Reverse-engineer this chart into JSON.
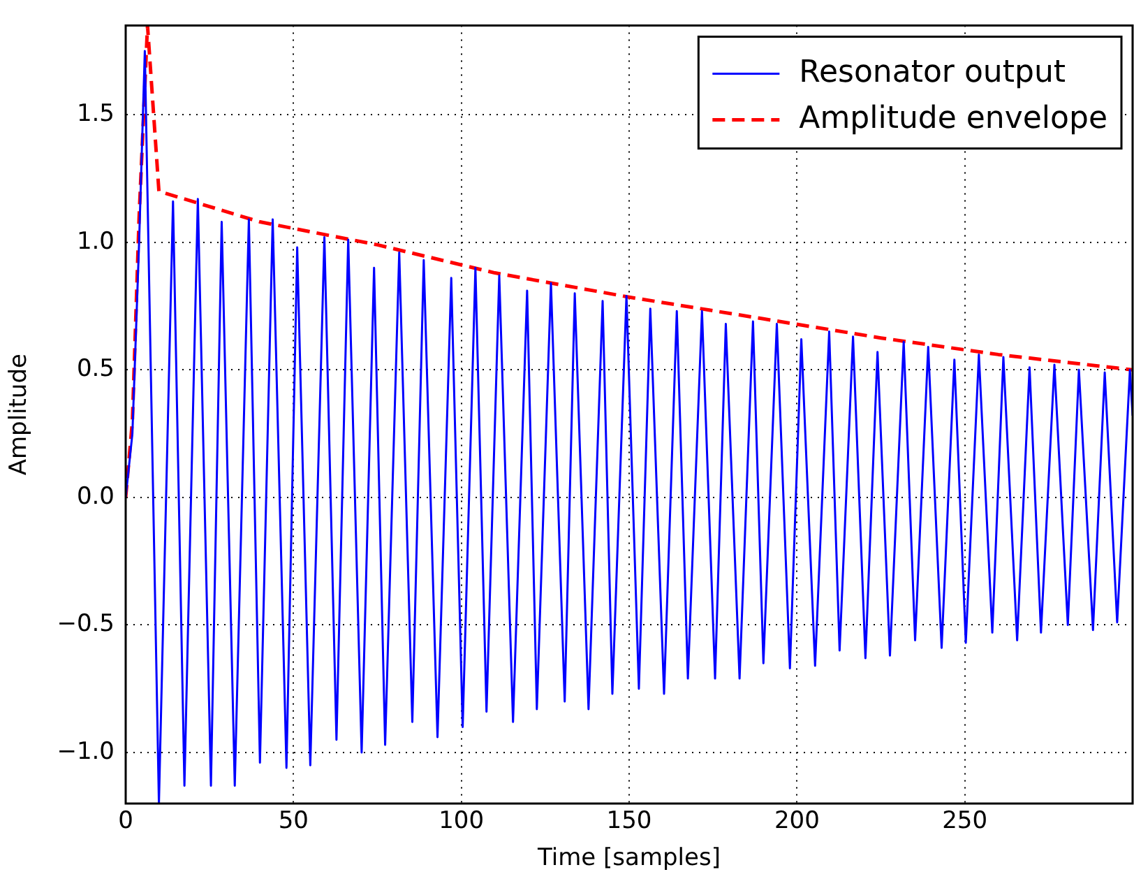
{
  "chart_data": {
    "type": "line",
    "xlabel": "Time [samples]",
    "ylabel": "Amplitude",
    "xlim": [
      0,
      300
    ],
    "ylim": [
      -1.2,
      1.85
    ],
    "xticks": [
      0,
      50,
      100,
      150,
      200,
      250
    ],
    "yticks": [
      {
        "value": -1,
        "label": "−1.0"
      },
      {
        "value": -0.5,
        "label": "−0.5"
      },
      {
        "value": 0,
        "label": "0.0"
      },
      {
        "value": 0.5,
        "label": "0.5"
      },
      {
        "value": 1,
        "label": "1.0"
      },
      {
        "value": 1.5,
        "label": "1.5"
      }
    ],
    "grid": true,
    "legend": "top right",
    "marker": "none",
    "series": [
      {
        "name": "Resonator output",
        "color": "#0000ff",
        "line_style": "solid",
        "x": [
          0,
          2,
          4,
          5.7,
          9.9,
          14.1,
          17.5,
          21.5,
          25.4,
          28.6,
          32.5,
          36.7,
          40,
          43.8,
          47.9,
          51.1,
          55,
          59.2,
          62.8,
          66.3,
          70.3,
          74,
          77.3,
          81.5,
          85.4,
          88.8,
          92.9,
          97,
          100.4,
          104.2,
          107.5,
          111.3,
          115.4,
          119.6,
          122.5,
          126.7,
          130.8,
          133.8,
          137.9,
          142.1,
          145,
          149.2,
          152.9,
          156.3,
          160.4,
          164.2,
          167.5,
          171.7,
          175.6,
          178.8,
          182.9,
          186.9,
          190,
          194,
          197.9,
          201.3,
          205.4,
          209.6,
          212.7,
          216.7,
          220.4,
          224,
          227.7,
          231.8,
          235.2,
          239.1,
          243.1,
          246.9,
          250.3,
          254.2,
          258.2,
          261.5,
          265.6,
          269.3,
          272.7,
          276.7,
          280.7,
          284,
          288.2,
          291.7,
          295.4,
          299.2,
          300
        ],
        "values": [
          0,
          0.25,
          1.0,
          1.75,
          -1.2,
          1.16,
          -1.13,
          1.17,
          -1.13,
          1.08,
          -1.13,
          1.09,
          -1.04,
          1.09,
          -1.06,
          0.98,
          -1.05,
          1.02,
          -0.95,
          1.01,
          -1.0,
          0.9,
          -0.97,
          0.96,
          -0.88,
          0.93,
          -0.94,
          0.86,
          -0.9,
          0.9,
          -0.84,
          0.87,
          -0.88,
          0.81,
          -0.83,
          0.84,
          -0.8,
          0.8,
          -0.83,
          0.77,
          -0.77,
          0.79,
          -0.75,
          0.74,
          -0.77,
          0.73,
          -0.71,
          0.73,
          -0.71,
          0.68,
          -0.71,
          0.69,
          -0.65,
          0.68,
          -0.67,
          0.62,
          -0.66,
          0.65,
          -0.6,
          0.63,
          -0.63,
          0.57,
          -0.62,
          0.61,
          -0.56,
          0.59,
          -0.59,
          0.54,
          -0.57,
          0.56,
          -0.53,
          0.55,
          -0.56,
          0.51,
          -0.53,
          0.52,
          -0.5,
          0.5,
          -0.52,
          0.49,
          -0.49,
          0.5,
          0.32
        ]
      },
      {
        "name": "Amplitude envelope",
        "color": "#ff0000",
        "line_style": "dashed",
        "x": [
          0,
          2,
          4,
          6.5,
          9.9,
          40,
          75,
          110,
          150,
          190,
          225,
          260,
          300
        ],
        "values": [
          0,
          0.3,
          1.1,
          1.85,
          1.2,
          1.08,
          0.99,
          0.88,
          0.785,
          0.7,
          0.625,
          0.56,
          0.5
        ]
      }
    ]
  }
}
